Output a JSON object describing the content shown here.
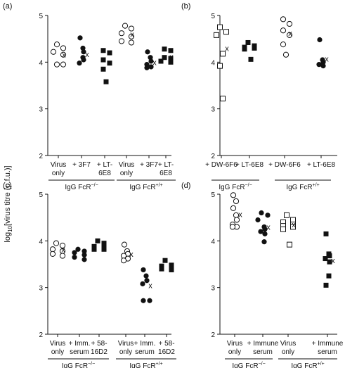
{
  "figure": {
    "ylabel": "log10[virus titre (p.f.u.)]",
    "ylabel_base": "log",
    "ylabel_sub": "10",
    "ylabel_rest": "[virus titre (p.f.u.)]",
    "ylim": [
      2,
      5
    ],
    "yticks": [
      "2",
      "3",
      "4",
      "5"
    ],
    "mean_marker": "x"
  },
  "chart_data": [
    {
      "panel": "(a)",
      "type": "scatter",
      "ylim": [
        2,
        5
      ],
      "yticks": [
        "2",
        "3",
        "4",
        "5"
      ],
      "groups": [
        {
          "line1": "Virus",
          "line2": "only",
          "marker": "open-circle",
          "values": [
            4.38,
            4.3,
            4.22,
            4.16,
            3.95,
            3.95
          ],
          "mean": 4.16
        },
        {
          "line1": "+ 3F7",
          "line2": "",
          "marker": "filled-circle",
          "values": [
            4.52,
            4.3,
            4.22,
            4.1,
            4.05,
            3.98
          ],
          "mean": 4.17
        },
        {
          "line1": "+ LT-",
          "line2": "6E8",
          "marker": "filled-square",
          "values": [
            4.25,
            4.2,
            4.05,
            3.98,
            3.85,
            3.58
          ],
          "mean": 4.0
        },
        {
          "line1": "Virus",
          "line2": "only",
          "marker": "open-circle",
          "values": [
            4.78,
            4.72,
            4.62,
            4.55,
            4.45,
            4.42
          ],
          "mean": 4.6
        },
        {
          "line1": "+ 3F7",
          "line2": "",
          "marker": "filled-circle",
          "values": [
            4.22,
            4.1,
            4.02,
            3.95,
            3.9,
            3.88
          ],
          "mean": 4.0
        },
        {
          "line1": "+ LT-",
          "line2": "6E8",
          "marker": "filled-square",
          "values": [
            4.28,
            4.25,
            4.1,
            4.08,
            4.02,
            4.0
          ],
          "mean": 4.12
        }
      ],
      "brackets": [
        {
          "label": "IgG FcR",
          "sup": "−/−",
          "from": 0,
          "to": 2
        },
        {
          "label": "IgG FcR",
          "sup": "+/+",
          "from": 3,
          "to": 5
        }
      ]
    },
    {
      "panel": "(b)",
      "type": "scatter",
      "ylim": [
        2,
        5
      ],
      "yticks": [
        "2",
        "3",
        "4",
        "5"
      ],
      "groups": [
        {
          "line1": "+ DW-6F6",
          "line2": "",
          "marker": "open-square",
          "values": [
            4.75,
            4.65,
            4.58,
            4.18,
            3.92,
            3.22
          ],
          "mean": 4.3
        },
        {
          "line1": "+ LT-6E8",
          "line2": "",
          "marker": "filled-square",
          "values": [
            4.42,
            4.35,
            4.32,
            4.3,
            4.28,
            4.06
          ],
          "mean": 4.32
        },
        {
          "line1": "+ DW-6F6",
          "line2": "",
          "marker": "open-circle",
          "values": [
            4.92,
            4.82,
            4.68,
            4.58,
            4.38,
            4.16
          ],
          "mean": 4.62
        },
        {
          "line1": "+ LT-6E8",
          "line2": "",
          "marker": "filled-circle",
          "values": [
            4.48,
            4.05,
            4.0,
            3.95,
            3.92
          ],
          "mean": 4.07
        }
      ],
      "brackets": [
        {
          "label": "IgG FcR",
          "sup": "−/−",
          "from": 0,
          "to": 1
        },
        {
          "label": "IgG FcR",
          "sup": "+/+",
          "from": 2,
          "to": 3
        }
      ]
    },
    {
      "panel": "(c)",
      "type": "scatter",
      "ylim": [
        2,
        5
      ],
      "yticks": [
        "2",
        "3",
        "4",
        "5"
      ],
      "groups": [
        {
          "line1": "Virus",
          "line2": "only",
          "marker": "open-circle",
          "values": [
            3.95,
            3.9,
            3.82,
            3.78,
            3.72,
            3.68
          ],
          "mean": 3.82
        },
        {
          "line1": "+ Imm.",
          "line2": "serum",
          "marker": "filled-circle",
          "values": [
            3.82,
            3.78,
            3.75,
            3.7,
            3.65,
            3.6
          ],
          "mean": 3.73
        },
        {
          "line1": "+ 58-",
          "line2": "16D2",
          "marker": "filled-square",
          "values": [
            4.0,
            3.95,
            3.88,
            3.85,
            3.82,
            3.82
          ],
          "mean": 3.88
        },
        {
          "line1": "Virus",
          "line2": "only",
          "marker": "open-circle",
          "values": [
            3.92,
            3.78,
            3.72,
            3.68,
            3.62,
            3.58
          ],
          "mean": 3.72
        },
        {
          "line1": "+ Imm.",
          "line2": "serum",
          "marker": "filled-circle",
          "values": [
            3.38,
            3.25,
            3.15,
            3.08,
            2.72,
            2.72
          ],
          "mean": 3.05
        },
        {
          "line1": "+ 58-",
          "line2": "16D2",
          "marker": "filled-square",
          "values": [
            3.58,
            3.48,
            3.46,
            3.45,
            3.4,
            3.38
          ],
          "mean": 3.45
        }
      ],
      "brackets": [
        {
          "label": "IgG FcR",
          "sup": "−/−",
          "from": 0,
          "to": 2
        },
        {
          "label": "IgG FcR",
          "sup": "+/+",
          "from": 3,
          "to": 5
        }
      ]
    },
    {
      "panel": "(d)",
      "type": "scatter",
      "ylim": [
        2,
        5
      ],
      "yticks": [
        "2",
        "3",
        "4",
        "5"
      ],
      "groups": [
        {
          "line1": "Virus",
          "line2": "only",
          "marker": "open-circle",
          "values": [
            4.98,
            4.85,
            4.7,
            4.55,
            4.45,
            4.35,
            4.3,
            4.3
          ],
          "mean": 4.57
        },
        {
          "line1": "+ Immune",
          "line2": "serum",
          "marker": "filled-circle",
          "values": [
            4.6,
            4.55,
            4.45,
            4.3,
            4.25,
            4.2,
            4.15,
            3.98
          ],
          "mean": 4.3
        },
        {
          "line1": "Virus",
          "line2": "only",
          "marker": "open-square",
          "values": [
            4.55,
            4.45,
            4.4,
            4.35,
            4.32,
            4.3,
            4.25,
            3.92
          ],
          "mean": 4.35
        },
        {
          "line1": "+ Immune",
          "line2": "serum",
          "marker": "filled-square",
          "values": [
            4.15,
            3.72,
            3.68,
            3.62,
            3.55,
            3.25,
            3.05
          ],
          "mean": 3.58
        }
      ],
      "brackets": [
        {
          "label": "IgG FcR",
          "sup": "−/−",
          "from": 0,
          "to": 1
        },
        {
          "label": "IgG FcR",
          "sup": "+/+",
          "from": 2,
          "to": 3
        }
      ]
    }
  ]
}
